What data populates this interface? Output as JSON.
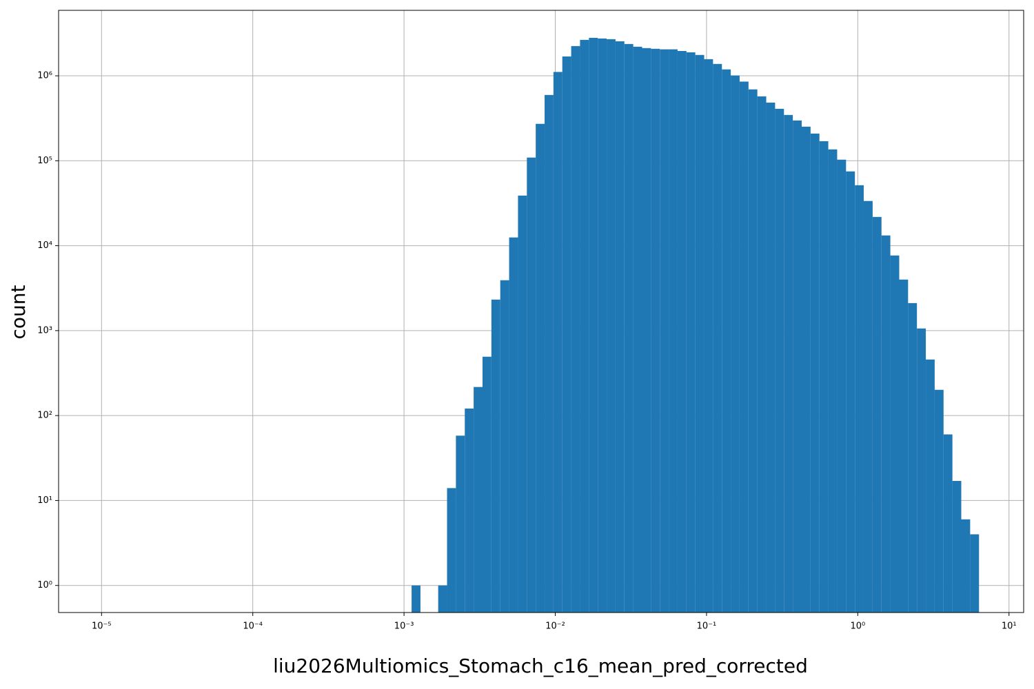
{
  "chart_data": {
    "type": "histogram",
    "xlabel": "liu2026Multiomics_Stomach_c16_mean_pred_corrected",
    "ylabel": "count",
    "bins": [
      0.001122,
      0.001284,
      0.00147,
      0.001682,
      0.001925,
      0.002203,
      0.002522,
      0.002886,
      0.003304,
      0.003781,
      0.004328,
      0.004953,
      0.005669,
      0.006489,
      0.007427,
      0.0085,
      0.009725,
      0.01113,
      0.01274,
      0.01458,
      0.01669,
      0.0191,
      0.02186,
      0.02502,
      0.02863,
      0.03277,
      0.03751,
      0.04293,
      0.04913,
      0.05623,
      0.06437,
      0.07367,
      0.08431,
      0.0965,
      0.1104,
      0.1264,
      0.1446,
      0.1655,
      0.1895,
      0.2168,
      0.2482,
      0.284,
      0.3251,
      0.3721,
      0.4259,
      0.4874,
      0.5578,
      0.6384,
      0.7307,
      0.8364,
      0.9572,
      1.095,
      1.254,
      1.435,
      1.642,
      1.88,
      2.151,
      2.462,
      2.818,
      3.225,
      3.692,
      4.225,
      4.835,
      5.535,
      6.335
    ],
    "values": [
      1,
      0,
      0,
      1,
      14,
      58,
      121,
      217,
      493,
      2320,
      3920,
      12500,
      38900,
      109000,
      272000,
      595000,
      1110000,
      1690000,
      2240000,
      2650000,
      2800000,
      2750000,
      2700000,
      2550000,
      2370000,
      2200000,
      2120000,
      2080000,
      2050000,
      2050000,
      1960000,
      1890000,
      1760000,
      1570000,
      1380000,
      1190000,
      1010000,
      855000,
      692000,
      573000,
      484000,
      409000,
      346000,
      298000,
      252000,
      209000,
      170000,
      136000,
      103000,
      74900,
      51500,
      33600,
      21800,
      13200,
      7670,
      3990,
      2110,
      1060,
      457,
      201,
      60,
      17,
      6,
      4
    ],
    "color": "#1f77b4",
    "xscale": "log",
    "yscale": "log",
    "xlim": [
      5.2e-06,
      12.5
    ],
    "ylim": [
      0.48,
      5900000
    ],
    "xticks": [
      {
        "value": 1e-05,
        "label": "10⁻⁵"
      },
      {
        "value": 0.0001,
        "label": "10⁻⁴"
      },
      {
        "value": 0.001,
        "label": "10⁻³"
      },
      {
        "value": 0.01,
        "label": "10⁻²"
      },
      {
        "value": 0.1,
        "label": "10⁻¹"
      },
      {
        "value": 1,
        "label": "10⁰"
      },
      {
        "value": 10,
        "label": "10¹"
      }
    ],
    "yticks": [
      {
        "value": 1,
        "label": "10⁰"
      },
      {
        "value": 10,
        "label": "10¹"
      },
      {
        "value": 100,
        "label": "10²"
      },
      {
        "value": 1000,
        "label": "10³"
      },
      {
        "value": 10000,
        "label": "10⁴"
      },
      {
        "value": 100000,
        "label": "10⁵"
      },
      {
        "value": 1000000,
        "label": "10⁶"
      }
    ],
    "grid": true
  }
}
